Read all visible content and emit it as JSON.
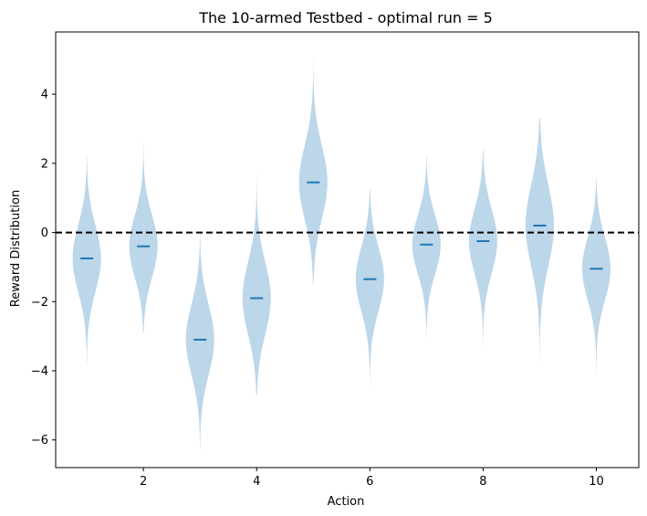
{
  "chart_data": {
    "type": "violin",
    "title": "The 10-armed Testbed - optimal run = 5",
    "xlabel": "Action",
    "ylabel": "Reward Distribution",
    "xlim": [
      0.45,
      10.75
    ],
    "ylim": [
      -6.8,
      5.8
    ],
    "xticks": [
      2,
      4,
      6,
      8,
      10
    ],
    "xtick_labels": [
      "2",
      "4",
      "6",
      "8",
      "10"
    ],
    "yticks": [
      -6,
      -4,
      -2,
      0,
      2,
      4
    ],
    "ytick_labels": [
      "−6",
      "−4",
      "−2",
      "0",
      "2",
      "4"
    ],
    "reference_line": {
      "y": 0,
      "style": "dashed",
      "color": "#000000"
    },
    "grid": false,
    "colors": {
      "violin_fill": "#bcd6ea",
      "mean_marker": "#1f77b4"
    },
    "series": [
      {
        "action": 1,
        "mean": -0.75,
        "min": -3.8,
        "max": 2.2
      },
      {
        "action": 2,
        "mean": -0.4,
        "min": -2.9,
        "max": 2.7
      },
      {
        "action": 3,
        "mean": -3.1,
        "min": -6.3,
        "max": 0.0
      },
      {
        "action": 4,
        "mean": -1.9,
        "min": -4.7,
        "max": 1.8
      },
      {
        "action": 5,
        "mean": 1.45,
        "min": -1.5,
        "max": 5.1
      },
      {
        "action": 6,
        "mean": -1.35,
        "min": -4.5,
        "max": 1.25
      },
      {
        "action": 7,
        "mean": -0.35,
        "min": -3.05,
        "max": 2.25
      },
      {
        "action": 8,
        "mean": -0.25,
        "min": -3.35,
        "max": 2.4
      },
      {
        "action": 9,
        "mean": 0.2,
        "min": -4.0,
        "max": 3.3
      },
      {
        "action": 10,
        "mean": -1.05,
        "min": -4.1,
        "max": 1.55
      }
    ]
  }
}
